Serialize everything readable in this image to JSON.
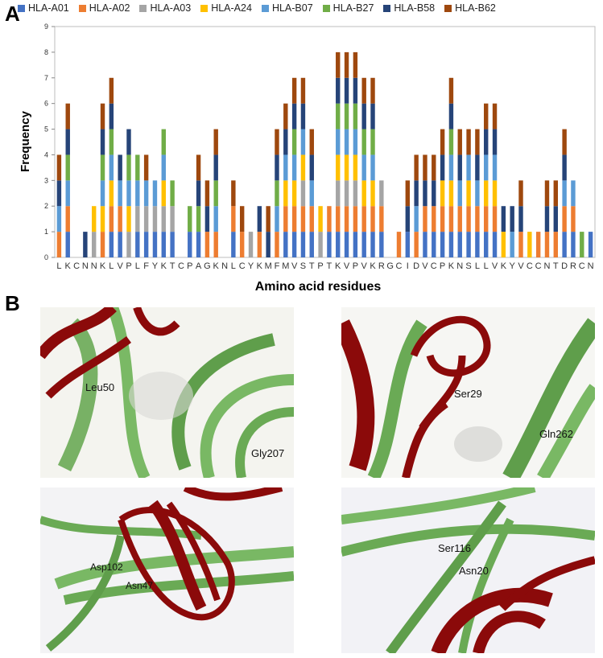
{
  "panels": {
    "a_label": "A",
    "b_label": "B"
  },
  "chart_data": {
    "type": "bar",
    "stacked": true,
    "xlabel": "Amino acid residues",
    "ylabel": "Frequency",
    "ylim": [
      0,
      9
    ],
    "yticks": [
      0,
      1,
      2,
      3,
      4,
      5,
      6,
      7,
      8,
      9
    ],
    "grid": false,
    "legend_position": "top",
    "categories": [
      "L",
      "K",
      "C",
      "N",
      "N",
      "K",
      "L",
      "V",
      "P",
      "L",
      "F",
      "Y",
      "K",
      "T",
      "C",
      "P",
      "A",
      "G",
      "K",
      "N",
      "L",
      "C",
      "Y",
      "K",
      "M",
      "F",
      "M",
      "V",
      "S",
      "T",
      "P",
      "T",
      "K",
      "V",
      "P",
      "V",
      "K",
      "R",
      "G",
      "C",
      "I",
      "D",
      "V",
      "C",
      "P",
      "K",
      "N",
      "S",
      "L",
      "L",
      "V",
      "K",
      "Y",
      "V",
      "C",
      "C",
      "N",
      "T",
      "D",
      "R",
      "C",
      "N"
    ],
    "series": [
      {
        "name": "HLA-A01",
        "color": "#4472C4",
        "values": [
          0,
          1,
          0,
          0,
          0,
          0,
          1,
          1,
          0,
          1,
          1,
          1,
          1,
          1,
          0,
          1,
          1,
          0,
          0,
          0,
          1,
          0,
          0,
          0,
          0,
          0,
          1,
          1,
          1,
          1,
          0,
          1,
          1,
          1,
          1,
          1,
          1,
          1,
          0,
          0,
          1,
          0,
          1,
          1,
          1,
          1,
          1,
          1,
          1,
          1,
          1,
          0,
          0,
          0,
          0,
          0,
          0,
          0,
          1,
          1,
          0,
          1
        ]
      },
      {
        "name": "HLA-A02",
        "color": "#ED7D31",
        "values": [
          1,
          1,
          0,
          0,
          0,
          1,
          1,
          1,
          0,
          0,
          0,
          0,
          0,
          0,
          0,
          0,
          0,
          1,
          1,
          0,
          1,
          1,
          0,
          1,
          0,
          1,
          1,
          1,
          1,
          1,
          0,
          1,
          1,
          1,
          1,
          1,
          1,
          1,
          0,
          1,
          0,
          1,
          1,
          1,
          1,
          1,
          1,
          1,
          1,
          1,
          1,
          0,
          0,
          1,
          0,
          1,
          1,
          1,
          1,
          1,
          0,
          0
        ]
      },
      {
        "name": "HLA-A03",
        "color": "#A5A5A5",
        "values": [
          0,
          0,
          0,
          0,
          1,
          0,
          0,
          0,
          1,
          1,
          1,
          1,
          1,
          1,
          0,
          0,
          0,
          0,
          0,
          0,
          0,
          0,
          1,
          0,
          0,
          0,
          0,
          0,
          1,
          0,
          1,
          0,
          1,
          1,
          1,
          0,
          0,
          1,
          0,
          0,
          0,
          0,
          0,
          0,
          0,
          0,
          0,
          0,
          0,
          0,
          0,
          0,
          0,
          0,
          0,
          0,
          0,
          0,
          0,
          0,
          0,
          0
        ]
      },
      {
        "name": "HLA-A24",
        "color": "#FFC000",
        "values": [
          0,
          0,
          0,
          0,
          1,
          1,
          1,
          0,
          1,
          0,
          0,
          0,
          1,
          0,
          0,
          0,
          0,
          0,
          0,
          0,
          0,
          0,
          0,
          0,
          0,
          0,
          1,
          1,
          1,
          0,
          1,
          0,
          1,
          1,
          1,
          1,
          1,
          0,
          0,
          0,
          0,
          0,
          0,
          0,
          1,
          1,
          0,
          1,
          0,
          1,
          1,
          1,
          0,
          0,
          1,
          0,
          0,
          0,
          0,
          0,
          0,
          0
        ]
      },
      {
        "name": "HLA-B07",
        "color": "#5B9BD5",
        "values": [
          1,
          1,
          0,
          0,
          0,
          1,
          1,
          1,
          1,
          1,
          1,
          1,
          1,
          0,
          0,
          0,
          0,
          0,
          1,
          0,
          0,
          0,
          0,
          0,
          0,
          1,
          1,
          1,
          1,
          1,
          0,
          0,
          1,
          1,
          1,
          1,
          1,
          0,
          0,
          0,
          0,
          1,
          0,
          0,
          0,
          1,
          1,
          1,
          1,
          1,
          1,
          0,
          1,
          0,
          0,
          0,
          0,
          0,
          1,
          1,
          0,
          0
        ]
      },
      {
        "name": "HLA-B27",
        "color": "#70AD47",
        "values": [
          0,
          1,
          0,
          0,
          0,
          1,
          1,
          0,
          1,
          1,
          0,
          0,
          1,
          1,
          0,
          1,
          1,
          0,
          1,
          0,
          0,
          0,
          0,
          0,
          0,
          1,
          0,
          1,
          0,
          0,
          0,
          0,
          1,
          1,
          1,
          1,
          1,
          0,
          0,
          0,
          0,
          0,
          0,
          0,
          0,
          1,
          0,
          0,
          0,
          0,
          0,
          0,
          0,
          0,
          0,
          0,
          0,
          0,
          0,
          0,
          1,
          0
        ]
      },
      {
        "name": "HLA-B58",
        "color": "#264478",
        "values": [
          1,
          1,
          0,
          1,
          0,
          1,
          1,
          1,
          1,
          0,
          0,
          0,
          0,
          0,
          0,
          0,
          1,
          1,
          1,
          0,
          0,
          0,
          0,
          1,
          1,
          1,
          1,
          1,
          1,
          1,
          0,
          0,
          1,
          1,
          1,
          1,
          1,
          0,
          0,
          0,
          1,
          1,
          1,
          1,
          1,
          1,
          1,
          0,
          1,
          1,
          1,
          1,
          1,
          1,
          0,
          0,
          1,
          1,
          1,
          0,
          0,
          0
        ]
      },
      {
        "name": "HLA-B62",
        "color": "#9E480E",
        "values": [
          1,
          1,
          0,
          0,
          0,
          1,
          1,
          0,
          0,
          0,
          1,
          0,
          0,
          0,
          0,
          0,
          1,
          1,
          1,
          0,
          1,
          1,
          0,
          0,
          1,
          1,
          1,
          1,
          1,
          1,
          0,
          0,
          1,
          1,
          1,
          1,
          1,
          0,
          0,
          0,
          1,
          1,
          1,
          1,
          1,
          1,
          1,
          1,
          1,
          1,
          1,
          0,
          0,
          1,
          0,
          0,
          1,
          1,
          1,
          0,
          0,
          0
        ]
      }
    ]
  },
  "structure_panels": [
    {
      "labels": [
        "Leu50",
        "Gly207"
      ]
    },
    {
      "labels": [
        "Ser29",
        "Gln262"
      ]
    },
    {
      "labels": [
        "Asp102",
        "Asn47"
      ]
    },
    {
      "labels": [
        "Ser116",
        "Asn20"
      ]
    }
  ]
}
